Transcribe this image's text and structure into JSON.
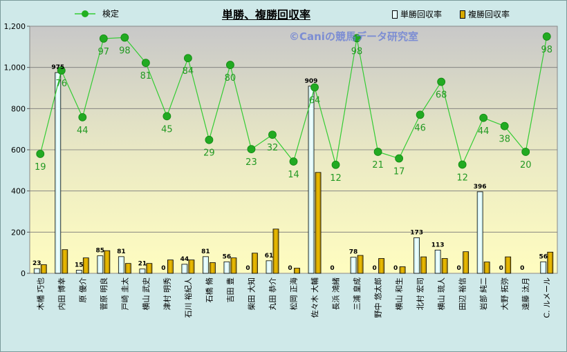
{
  "chart_data": {
    "type": "bar+line",
    "title": "単勝、複勝回収率",
    "watermark": "©Caniの競馬データ研究室",
    "ylim": [
      0,
      1200
    ],
    "yticks": [
      "0",
      "200",
      "400",
      "600",
      "800",
      "1,000",
      "1,200"
    ],
    "categories": [
      "木幡 巧也",
      "内田 博幸",
      "原 優介",
      "菅原 明良",
      "戸崎 圭太",
      "横山 武史",
      "津村 明秀",
      "石川 裕紀人",
      "石橋 脩",
      "吉田 豊",
      "柴田 大知",
      "丸田 恭介",
      "松岡 正海",
      "佐々木 大輔",
      "長浜 鴻緒",
      "三浦 皇成",
      "野中 悠太郎",
      "横山 和生",
      "北村 宏司",
      "横山 琉人",
      "田辺 裕信",
      "岩部 純二",
      "大野 拓弥",
      "遠藤 汰月",
      "C. ルメール"
    ],
    "series": [
      {
        "name": "単勝回収率",
        "type": "bar",
        "color": "#e8fbfb",
        "values": [
          23,
          975,
          15,
          85,
          81,
          21,
          0,
          44,
          81,
          56,
          0,
          61,
          0,
          909,
          0,
          78,
          0,
          0,
          173,
          113,
          0,
          396,
          0,
          0,
          56
        ]
      },
      {
        "name": "複勝回収率",
        "type": "bar",
        "color": "#d7a900",
        "values": [
          42,
          115,
          75,
          110,
          48,
          48,
          65,
          65,
          52,
          75,
          98,
          215,
          25,
          490,
          0,
          87,
          72,
          32,
          80,
          72,
          105,
          55,
          80,
          0,
          103
        ]
      },
      {
        "name": "検定",
        "type": "line",
        "color": "#33cc33",
        "values": [
          580,
          985,
          758,
          1140,
          1145,
          1022,
          763,
          1045,
          648,
          1012,
          603,
          673,
          543,
          903,
          527,
          1142,
          590,
          558,
          770,
          930,
          528,
          755,
          715,
          590,
          1150
        ],
        "labels": [
          "19",
          "76",
          "44",
          "97",
          "98",
          "81",
          "45",
          "84",
          "29",
          "80",
          "23",
          "32",
          "14",
          "64",
          "12",
          "98",
          "21",
          "17",
          "46",
          "68",
          "12",
          "44",
          "38",
          "20",
          "98"
        ]
      }
    ],
    "bar_labels": [
      "23",
      "975",
      "15",
      "85",
      "81",
      "21",
      "0",
      "44",
      "81",
      "56",
      "0",
      "61",
      "0",
      "909",
      "0",
      "78",
      "0",
      "0",
      "173",
      "113",
      "0",
      "396",
      "0",
      "0",
      "56"
    ],
    "grid": true,
    "legend": "top"
  }
}
